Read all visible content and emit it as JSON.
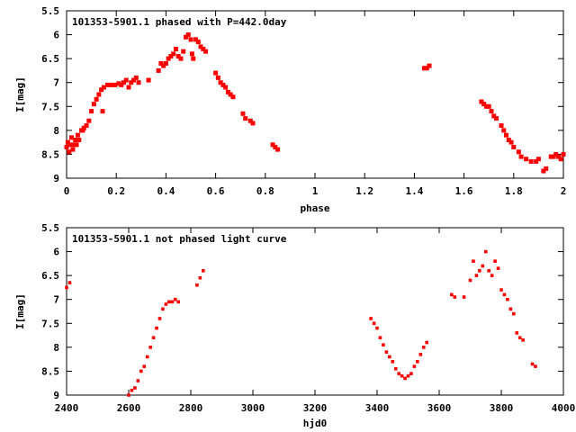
{
  "chart_data": [
    {
      "type": "scatter",
      "title": "101353-5901.1 phased with P=442.0day",
      "xlabel": "phase",
      "ylabel": "I[mag]",
      "xlim": [
        0,
        2
      ],
      "ylim": [
        9,
        5.5
      ],
      "y_inverted": true,
      "grid": false,
      "marker_color": "#ff0000",
      "x_ticks": [
        "0",
        "0.2",
        "0.4",
        "0.6",
        "0.8",
        "1",
        "1.2",
        "1.4",
        "1.6",
        "1.8",
        "2"
      ],
      "x_tick_values": [
        0,
        0.2,
        0.4,
        0.6,
        0.8,
        1.0,
        1.2,
        1.4,
        1.6,
        1.8,
        2.0
      ],
      "y_ticks": [
        "5.5",
        "6",
        "6.5",
        "7",
        "7.5",
        "8",
        "8.5",
        "9"
      ],
      "y_tick_values": [
        5.5,
        6,
        6.5,
        7,
        7.5,
        8,
        8.5,
        9
      ],
      "points": [
        [
          0.0,
          8.35
        ],
        [
          0.005,
          8.25
        ],
        [
          0.01,
          8.45
        ],
        [
          0.015,
          8.3
        ],
        [
          0.02,
          8.15
        ],
        [
          0.025,
          8.4
        ],
        [
          0.03,
          8.3
        ],
        [
          0.035,
          8.2
        ],
        [
          0.04,
          8.3
        ],
        [
          0.045,
          8.1
        ],
        [
          0.05,
          8.2
        ],
        [
          0.06,
          8.0
        ],
        [
          0.065,
          8.0
        ],
        [
          0.07,
          7.95
        ],
        [
          0.08,
          7.9
        ],
        [
          0.09,
          7.8
        ],
        [
          0.1,
          7.6
        ],
        [
          0.11,
          7.45
        ],
        [
          0.12,
          7.35
        ],
        [
          0.13,
          7.25
        ],
        [
          0.14,
          7.15
        ],
        [
          0.145,
          7.6
        ],
        [
          0.15,
          7.1
        ],
        [
          0.165,
          7.05
        ],
        [
          0.18,
          7.05
        ],
        [
          0.195,
          7.05
        ],
        [
          0.21,
          7.02
        ],
        [
          0.22,
          7.05
        ],
        [
          0.23,
          7.0
        ],
        [
          0.24,
          6.95
        ],
        [
          0.25,
          7.1
        ],
        [
          0.26,
          7.0
        ],
        [
          0.27,
          6.95
        ],
        [
          0.28,
          6.9
        ],
        [
          0.29,
          7.0
        ],
        [
          0.33,
          6.95
        ],
        [
          0.37,
          6.75
        ],
        [
          0.38,
          6.6
        ],
        [
          0.39,
          6.65
        ],
        [
          0.4,
          6.6
        ],
        [
          0.41,
          6.5
        ],
        [
          0.42,
          6.45
        ],
        [
          0.43,
          6.4
        ],
        [
          0.44,
          6.3
        ],
        [
          0.45,
          6.45
        ],
        [
          0.46,
          6.5
        ],
        [
          0.47,
          6.35
        ],
        [
          0.48,
          6.05
        ],
        [
          0.49,
          6.0
        ],
        [
          0.5,
          6.1
        ],
        [
          0.505,
          6.4
        ],
        [
          0.51,
          6.5
        ],
        [
          0.52,
          6.1
        ],
        [
          0.53,
          6.15
        ],
        [
          0.54,
          6.25
        ],
        [
          0.55,
          6.3
        ],
        [
          0.56,
          6.35
        ],
        [
          0.6,
          6.8
        ],
        [
          0.61,
          6.9
        ],
        [
          0.62,
          7.0
        ],
        [
          0.63,
          7.05
        ],
        [
          0.64,
          7.1
        ],
        [
          0.65,
          7.2
        ],
        [
          0.66,
          7.25
        ],
        [
          0.67,
          7.3
        ],
        [
          0.71,
          7.65
        ],
        [
          0.72,
          7.75
        ],
        [
          0.74,
          7.8
        ],
        [
          0.75,
          7.85
        ],
        [
          0.83,
          8.3
        ],
        [
          0.84,
          8.35
        ],
        [
          0.85,
          8.4
        ],
        [
          1.44,
          6.7
        ],
        [
          1.45,
          6.7
        ],
        [
          1.46,
          6.65
        ],
        [
          1.67,
          7.4
        ],
        [
          1.68,
          7.45
        ],
        [
          1.69,
          7.5
        ],
        [
          1.7,
          7.5
        ],
        [
          1.71,
          7.6
        ],
        [
          1.72,
          7.7
        ],
        [
          1.73,
          7.75
        ],
        [
          1.75,
          7.9
        ],
        [
          1.76,
          8.0
        ],
        [
          1.77,
          8.1
        ],
        [
          1.78,
          8.2
        ],
        [
          1.79,
          8.25
        ],
        [
          1.8,
          8.35
        ],
        [
          1.82,
          8.45
        ],
        [
          1.83,
          8.55
        ],
        [
          1.85,
          8.6
        ],
        [
          1.87,
          8.65
        ],
        [
          1.89,
          8.65
        ],
        [
          1.9,
          8.6
        ],
        [
          1.92,
          8.85
        ],
        [
          1.93,
          8.8
        ],
        [
          1.95,
          8.55
        ],
        [
          1.96,
          8.55
        ],
        [
          1.97,
          8.5
        ],
        [
          1.98,
          8.55
        ],
        [
          1.99,
          8.6
        ],
        [
          2.0,
          8.5
        ]
      ]
    },
    {
      "type": "scatter",
      "title": "101353-5901.1 not phased light curve",
      "xlabel": "hjd0",
      "ylabel": "I[mag]",
      "xlim": [
        2400,
        4000
      ],
      "ylim": [
        9,
        5.5
      ],
      "y_inverted": true,
      "grid": false,
      "marker_color": "#ff0000",
      "x_ticks": [
        "2400",
        "2600",
        "2800",
        "3000",
        "3200",
        "3400",
        "3600",
        "3800",
        "4000"
      ],
      "x_tick_values": [
        2400,
        2600,
        2800,
        3000,
        3200,
        3400,
        3600,
        3800,
        4000
      ],
      "y_ticks": [
        "5.5",
        "6",
        "6.5",
        "7",
        "7.5",
        "8",
        "8.5",
        "9"
      ],
      "y_tick_values": [
        5.5,
        6,
        6.5,
        7,
        7.5,
        8,
        8.5,
        9
      ],
      "points": [
        [
          2400,
          6.75
        ],
        [
          2410,
          6.65
        ],
        [
          2600,
          9.0
        ],
        [
          2610,
          8.9
        ],
        [
          2620,
          8.85
        ],
        [
          2630,
          8.7
        ],
        [
          2640,
          8.5
        ],
        [
          2650,
          8.4
        ],
        [
          2660,
          8.2
        ],
        [
          2670,
          8.0
        ],
        [
          2680,
          7.8
        ],
        [
          2690,
          7.6
        ],
        [
          2700,
          7.4
        ],
        [
          2710,
          7.2
        ],
        [
          2720,
          7.1
        ],
        [
          2730,
          7.05
        ],
        [
          2740,
          7.05
        ],
        [
          2750,
          7.0
        ],
        [
          2760,
          7.05
        ],
        [
          2820,
          6.7
        ],
        [
          2830,
          6.55
        ],
        [
          2840,
          6.4
        ],
        [
          3380,
          7.4
        ],
        [
          3390,
          7.5
        ],
        [
          3400,
          7.6
        ],
        [
          3410,
          7.8
        ],
        [
          3420,
          7.95
        ],
        [
          3430,
          8.1
        ],
        [
          3440,
          8.2
        ],
        [
          3450,
          8.3
        ],
        [
          3460,
          8.45
        ],
        [
          3470,
          8.55
        ],
        [
          3480,
          8.6
        ],
        [
          3490,
          8.65
        ],
        [
          3500,
          8.6
        ],
        [
          3510,
          8.55
        ],
        [
          3520,
          8.4
        ],
        [
          3530,
          8.3
        ],
        [
          3540,
          8.15
        ],
        [
          3550,
          8.0
        ],
        [
          3560,
          7.9
        ],
        [
          3640,
          6.9
        ],
        [
          3650,
          6.95
        ],
        [
          3680,
          6.95
        ],
        [
          3700,
          6.6
        ],
        [
          3710,
          6.2
        ],
        [
          3720,
          6.5
        ],
        [
          3730,
          6.4
        ],
        [
          3740,
          6.3
        ],
        [
          3750,
          6.0
        ],
        [
          3760,
          6.4
        ],
        [
          3770,
          6.5
        ],
        [
          3780,
          6.2
        ],
        [
          3790,
          6.35
        ],
        [
          3800,
          6.8
        ],
        [
          3810,
          6.9
        ],
        [
          3820,
          7.0
        ],
        [
          3830,
          7.2
        ],
        [
          3840,
          7.3
        ],
        [
          3850,
          7.7
        ],
        [
          3860,
          7.8
        ],
        [
          3870,
          7.85
        ],
        [
          3900,
          8.35
        ],
        [
          3910,
          8.4
        ]
      ]
    }
  ]
}
